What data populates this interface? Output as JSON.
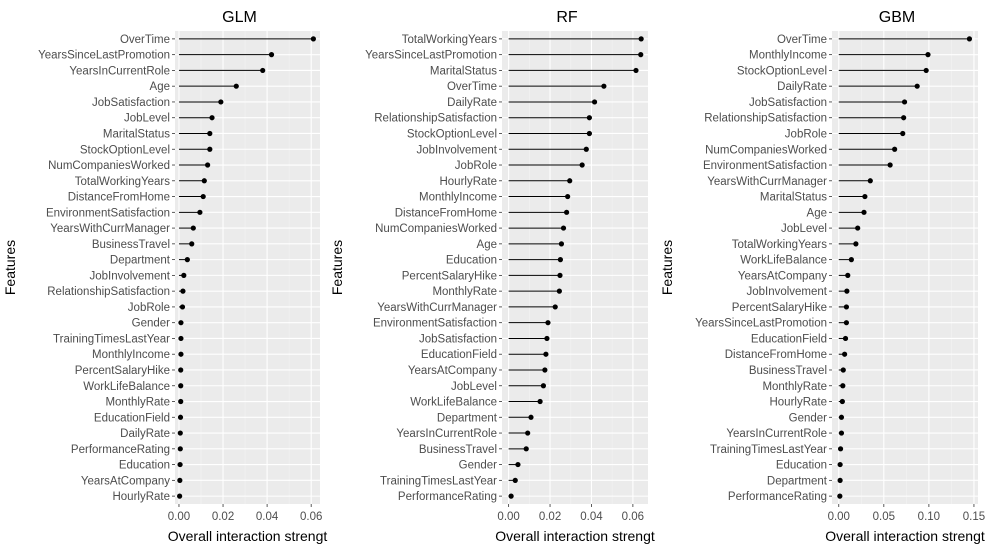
{
  "chart_data": [
    {
      "type": "lollipop",
      "title": "GLM",
      "xlabel": "Overall interaction strengt",
      "ylabel": "Features",
      "xlim": [
        -0.0018,
        0.064
      ],
      "xticks": [
        0,
        0.02,
        0.04,
        0.06
      ],
      "xtick_labels": [
        "0.00",
        "0.02",
        "0.04",
        "0.06"
      ],
      "grid": true,
      "categories": [
        "OverTime",
        "YearsSinceLastPromotion",
        "YearsInCurrentRole",
        "Age",
        "JobSatisfaction",
        "JobLevel",
        "MaritalStatus",
        "StockOptionLevel",
        "NumCompaniesWorked",
        "TotalWorkingYears",
        "DistanceFromHome",
        "EnvironmentSatisfaction",
        "YearsWithCurrManager",
        "BusinessTravel",
        "Department",
        "JobInvolvement",
        "RelationshipSatisfaction",
        "JobRole",
        "Gender",
        "TrainingTimesLastYear",
        "MonthlyIncome",
        "PercentSalaryHike",
        "WorkLifeBalance",
        "MonthlyRate",
        "EducationField",
        "DailyRate",
        "PerformanceRating",
        "Education",
        "YearsAtCompany",
        "HourlyRate"
      ],
      "values": [
        0.061,
        0.042,
        0.038,
        0.026,
        0.019,
        0.015,
        0.014,
        0.014,
        0.013,
        0.0115,
        0.011,
        0.0095,
        0.0065,
        0.0058,
        0.0038,
        0.0022,
        0.0018,
        0.0016,
        0.0009,
        0.0009,
        0.0009,
        0.0008,
        0.0008,
        0.0008,
        0.0007,
        0.0006,
        0.0006,
        0.0005,
        0.0004,
        0.0003
      ]
    },
    {
      "type": "lollipop",
      "title": "RF",
      "xlabel": "Overall interaction strengt",
      "ylabel": "Features",
      "xlim": [
        -0.0032,
        0.0673
      ],
      "xticks": [
        0,
        0.02,
        0.04,
        0.06
      ],
      "xtick_labels": [
        "0.00",
        "0.02",
        "0.04",
        "0.06"
      ],
      "grid": true,
      "categories": [
        "TotalWorkingYears",
        "YearsSinceLastPromotion",
        "MaritalStatus",
        "OverTime",
        "DailyRate",
        "RelationshipSatisfaction",
        "StockOptionLevel",
        "JobInvolvement",
        "JobRole",
        "HourlyRate",
        "MonthlyIncome",
        "DistanceFromHome",
        "NumCompaniesWorked",
        "Age",
        "Education",
        "PercentSalaryHike",
        "MonthlyRate",
        "YearsWithCurrManager",
        "EnvironmentSatisfaction",
        "JobSatisfaction",
        "EducationField",
        "YearsAtCompany",
        "JobLevel",
        "WorkLifeBalance",
        "Department",
        "YearsInCurrentRole",
        "BusinessTravel",
        "Gender",
        "TrainingTimesLastYear",
        "PerformanceRating"
      ],
      "values": [
        0.064,
        0.0638,
        0.0615,
        0.046,
        0.0415,
        0.039,
        0.039,
        0.0375,
        0.0355,
        0.0295,
        0.0285,
        0.028,
        0.0265,
        0.0255,
        0.025,
        0.0248,
        0.0245,
        0.0225,
        0.019,
        0.0185,
        0.018,
        0.0175,
        0.0168,
        0.0152,
        0.0108,
        0.0092,
        0.0085,
        0.0045,
        0.0032,
        0.0012
      ]
    },
    {
      "type": "lollipop",
      "title": "GBM",
      "xlabel": "Overall interaction strengt",
      "ylabel": "Features",
      "xlim": [
        -0.0075,
        0.1545
      ],
      "xticks": [
        0,
        0.05,
        0.1,
        0.15
      ],
      "xtick_labels": [
        "0.00",
        "0.05",
        "0.10",
        "0.15"
      ],
      "grid": true,
      "categories": [
        "OverTime",
        "MonthlyIncome",
        "StockOptionLevel",
        "DailyRate",
        "JobSatisfaction",
        "RelationshipSatisfaction",
        "JobRole",
        "NumCompaniesWorked",
        "EnvironmentSatisfaction",
        "YearsWithCurrManager",
        "MaritalStatus",
        "Age",
        "JobLevel",
        "TotalWorkingYears",
        "WorkLifeBalance",
        "YearsAtCompany",
        "JobInvolvement",
        "PercentSalaryHike",
        "YearsSinceLastPromotion",
        "EducationField",
        "DistanceFromHome",
        "BusinessTravel",
        "MonthlyRate",
        "HourlyRate",
        "Gender",
        "YearsInCurrentRole",
        "TrainingTimesLastYear",
        "Education",
        "Department",
        "PerformanceRating"
      ],
      "values": [
        0.145,
        0.099,
        0.097,
        0.087,
        0.073,
        0.072,
        0.071,
        0.062,
        0.057,
        0.035,
        0.029,
        0.028,
        0.021,
        0.019,
        0.014,
        0.01,
        0.009,
        0.0085,
        0.0085,
        0.0075,
        0.0065,
        0.005,
        0.0045,
        0.004,
        0.003,
        0.003,
        0.002,
        0.0015,
        0.0015,
        0.0012
      ]
    }
  ],
  "colors": {
    "panel_background": "#EBEBEB",
    "grid_major": "#FFFFFF",
    "grid_minor": "#F3F3F3",
    "point": "#000000",
    "text": "#4D4D4D",
    "title": "#000000"
  }
}
